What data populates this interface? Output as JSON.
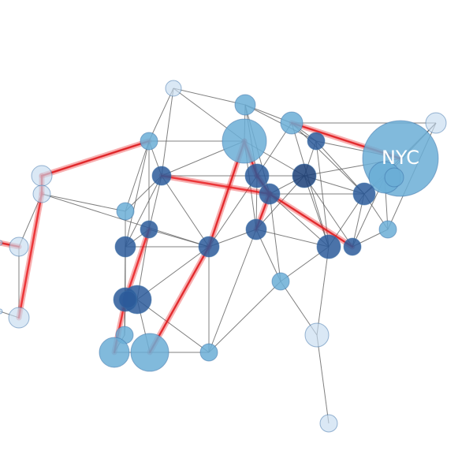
{
  "diagram": {
    "type": "network-graph",
    "colors": {
      "edge": "#555555",
      "highlight_edge": "#e8191d",
      "node_light": "#c6dbef",
      "node_mid": "#6baed6",
      "node_dark": "#2b5a9a",
      "node_darkest": "#1b3f78",
      "label_text": "#ffffff"
    },
    "labels": [
      "NYC"
    ],
    "node_count": 41
  }
}
